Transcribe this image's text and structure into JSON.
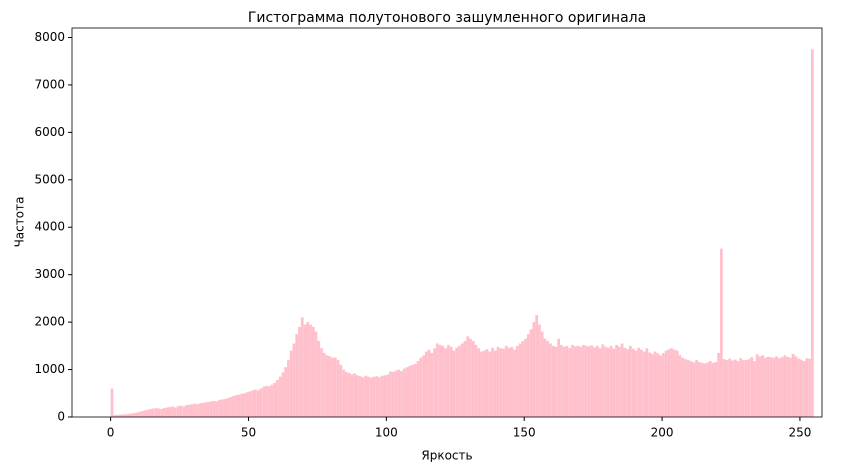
{
  "chart_data": {
    "type": "histogram",
    "title": "Гистограмма полутонового зашумленного оригинала",
    "x_label": "Яркость",
    "y_label": "Частота",
    "color": "#ffc0cb",
    "bins": [
      0,
      1,
      2,
      3,
      4,
      5,
      6,
      7,
      8,
      9,
      10,
      11,
      12,
      13,
      14,
      15,
      16,
      17,
      18,
      19,
      20,
      21,
      22,
      23,
      24,
      25,
      26,
      27,
      28,
      29,
      30,
      31,
      32,
      33,
      34,
      35,
      36,
      37,
      38,
      39,
      40,
      41,
      42,
      43,
      44,
      45,
      46,
      47,
      48,
      49,
      50,
      51,
      52,
      53,
      54,
      55,
      56,
      57,
      58,
      59,
      60,
      61,
      62,
      63,
      64,
      65,
      66,
      67,
      68,
      69,
      70,
      71,
      72,
      73,
      74,
      75,
      76,
      77,
      78,
      79,
      80,
      81,
      82,
      83,
      84,
      85,
      86,
      87,
      88,
      89,
      90,
      91,
      92,
      93,
      94,
      95,
      96,
      97,
      98,
      99,
      100,
      101,
      102,
      103,
      104,
      105,
      106,
      107,
      108,
      109,
      110,
      111,
      112,
      113,
      114,
      115,
      116,
      117,
      118,
      119,
      120,
      121,
      122,
      123,
      124,
      125,
      126,
      127,
      128,
      129,
      130,
      131,
      132,
      133,
      134,
      135,
      136,
      137,
      138,
      139,
      140,
      141,
      142,
      143,
      144,
      145,
      146,
      147,
      148,
      149,
      150,
      151,
      152,
      153,
      154,
      155,
      156,
      157,
      158,
      159,
      160,
      161,
      162,
      163,
      164,
      165,
      166,
      167,
      168,
      169,
      170,
      171,
      172,
      173,
      174,
      175,
      176,
      177,
      178,
      179,
      180,
      181,
      182,
      183,
      184,
      185,
      186,
      187,
      188,
      189,
      190,
      191,
      192,
      193,
      194,
      195,
      196,
      197,
      198,
      199,
      200,
      201,
      202,
      203,
      204,
      205,
      206,
      207,
      208,
      209,
      210,
      211,
      212,
      213,
      214,
      215,
      216,
      217,
      218,
      219,
      220,
      221,
      222,
      223,
      224,
      225,
      226,
      227,
      228,
      229,
      230,
      231,
      232,
      233,
      234,
      235,
      236,
      237,
      238,
      239,
      240,
      241,
      242,
      243,
      244,
      245,
      246,
      247,
      248,
      249,
      250,
      251,
      252,
      253,
      254,
      255
    ],
    "counts": [
      600,
      40,
      45,
      50,
      55,
      60,
      65,
      75,
      85,
      95,
      110,
      125,
      140,
      155,
      170,
      180,
      185,
      180,
      170,
      190,
      200,
      210,
      220,
      200,
      230,
      240,
      220,
      250,
      260,
      270,
      280,
      270,
      290,
      300,
      310,
      320,
      330,
      340,
      330,
      360,
      370,
      380,
      400,
      420,
      440,
      460,
      470,
      490,
      500,
      520,
      540,
      560,
      580,
      560,
      600,
      640,
      660,
      650,
      680,
      720,
      780,
      850,
      940,
      1050,
      1200,
      1400,
      1550,
      1750,
      1900,
      2100,
      1950,
      2000,
      1950,
      1900,
      1800,
      1600,
      1450,
      1350,
      1300,
      1280,
      1250,
      1250,
      1200,
      1100,
      1000,
      950,
      930,
      900,
      920,
      880,
      860,
      840,
      870,
      850,
      830,
      850,
      860,
      840,
      870,
      880,
      900,
      960,
      950,
      980,
      1000,
      970,
      1020,
      1050,
      1080,
      1100,
      1120,
      1180,
      1250,
      1300,
      1380,
      1420,
      1350,
      1450,
      1550,
      1520,
      1500,
      1450,
      1520,
      1480,
      1400,
      1460,
      1500,
      1550,
      1600,
      1700,
      1650,
      1600,
      1520,
      1450,
      1380,
      1400,
      1430,
      1380,
      1460,
      1400,
      1480,
      1450,
      1440,
      1500,
      1460,
      1480,
      1420,
      1500,
      1550,
      1600,
      1650,
      1750,
      1850,
      2000,
      2150,
      1950,
      1800,
      1650,
      1600,
      1550,
      1500,
      1480,
      1650,
      1520,
      1480,
      1500,
      1450,
      1520,
      1490,
      1500,
      1480,
      1520,
      1500,
      1490,
      1510,
      1470,
      1500,
      1450,
      1530,
      1480,
      1460,
      1500,
      1440,
      1520,
      1480,
      1550,
      1460,
      1430,
      1500,
      1440,
      1400,
      1460,
      1420,
      1380,
      1450,
      1360,
      1330,
      1380,
      1340,
      1300,
      1350,
      1400,
      1430,
      1450,
      1420,
      1400,
      1300,
      1250,
      1220,
      1200,
      1180,
      1150,
      1200,
      1160,
      1140,
      1130,
      1150,
      1180,
      1140,
      1160,
      1350,
      3550,
      1220,
      1200,
      1230,
      1190,
      1210,
      1180,
      1240,
      1200,
      1200,
      1220,
      1260,
      1180,
      1320,
      1280,
      1300,
      1250,
      1270,
      1260,
      1250,
      1280,
      1240,
      1260,
      1300,
      1270,
      1250,
      1330,
      1280,
      1230,
      1210,
      1180,
      1240,
      1230,
      7750
    ],
    "xlim": [
      -14,
      258
    ],
    "xticks": [
      0,
      50,
      100,
      150,
      200,
      250
    ],
    "ylim": [
      0,
      8200
    ],
    "yticks": [
      0,
      1000,
      2000,
      3000,
      4000,
      5000,
      6000,
      7000,
      8000
    ]
  }
}
